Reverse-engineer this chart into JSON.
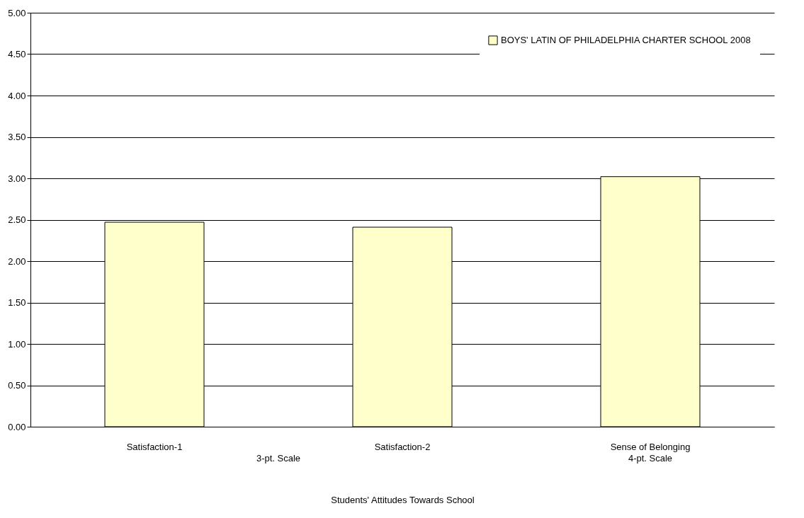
{
  "chart_data": {
    "type": "bar",
    "xlabel": "Students' Attitudes Towards School",
    "categories": [
      "Satisfaction-1",
      "Satisfaction-2",
      "Sense of Belonging"
    ],
    "series": [
      {
        "name": "BOYS' LATIN OF PHILADELPHIA CHARTER SCHOOL 2008",
        "color": "#ffffcc",
        "values": [
          2.47,
          2.41,
          3.02
        ]
      }
    ],
    "ylim": [
      0,
      5
    ],
    "yticks": [
      {
        "value": 0,
        "label": "0.00"
      },
      {
        "value": 0.5,
        "label": "0.50"
      },
      {
        "value": 1,
        "label": "1.00"
      },
      {
        "value": 1.5,
        "label": "1.50"
      },
      {
        "value": 2,
        "label": "2.00"
      },
      {
        "value": 2.5,
        "label": "2.50"
      },
      {
        "value": 3,
        "label": "3.00"
      },
      {
        "value": 3.5,
        "label": "3.50"
      },
      {
        "value": 4,
        "label": "4.00"
      },
      {
        "value": 4.5,
        "label": "4.50"
      },
      {
        "value": 5,
        "label": "5.00"
      }
    ],
    "annotations": [
      "3-pt. Scale",
      "4-pt. Scale"
    ],
    "grid": "y",
    "legend": "top right"
  }
}
